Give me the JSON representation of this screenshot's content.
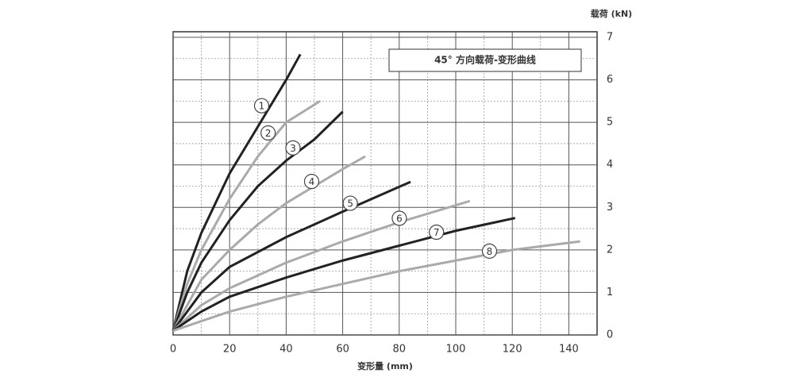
{
  "chart_data": {
    "type": "line",
    "title": "45° 方向载荷-变形曲线",
    "x_label": "变形量 (mm)",
    "y_label": "载荷 (kN)",
    "xlim": [
      0,
      150
    ],
    "xticks": [
      0,
      20,
      40,
      60,
      80,
      100,
      120,
      140
    ],
    "ylim": [
      0,
      7
    ],
    "yticks": [
      0,
      1,
      2,
      3,
      4,
      5,
      6,
      7
    ],
    "grid": true,
    "series": [
      {
        "name": "1",
        "color": "#222222",
        "x": [
          0,
          5,
          10,
          20,
          30,
          40,
          45
        ],
        "values": [
          0.1,
          1.5,
          2.4,
          3.8,
          4.9,
          6.0,
          6.6
        ]
      },
      {
        "name": "2",
        "color": "#aaaaaa",
        "x": [
          0,
          5,
          10,
          20,
          30,
          40,
          52
        ],
        "values": [
          0.1,
          1.2,
          2.0,
          3.2,
          4.2,
          5.0,
          5.5
        ]
      },
      {
        "name": "3",
        "color": "#222222",
        "x": [
          0,
          5,
          10,
          20,
          30,
          40,
          50,
          60
        ],
        "values": [
          0.1,
          1.0,
          1.7,
          2.7,
          3.5,
          4.1,
          4.6,
          5.25
        ]
      },
      {
        "name": "4",
        "color": "#aaaaaa",
        "x": [
          0,
          10,
          20,
          30,
          40,
          50,
          60,
          68
        ],
        "values": [
          0.1,
          1.3,
          2.0,
          2.6,
          3.1,
          3.5,
          3.9,
          4.2
        ]
      },
      {
        "name": "5",
        "color": "#222222",
        "x": [
          0,
          10,
          20,
          40,
          60,
          84
        ],
        "values": [
          0.1,
          1.0,
          1.6,
          2.3,
          2.9,
          3.6
        ]
      },
      {
        "name": "6",
        "color": "#aaaaaa",
        "x": [
          0,
          10,
          20,
          40,
          60,
          80,
          105
        ],
        "values": [
          0.1,
          0.7,
          1.1,
          1.7,
          2.2,
          2.65,
          3.15
        ]
      },
      {
        "name": "7",
        "color": "#222222",
        "x": [
          0,
          10,
          20,
          40,
          60,
          80,
          100,
          121
        ],
        "values": [
          0.1,
          0.55,
          0.9,
          1.35,
          1.75,
          2.1,
          2.45,
          2.75
        ]
      },
      {
        "name": "8",
        "color": "#aaaaaa",
        "x": [
          0,
          20,
          40,
          60,
          80,
          100,
          120,
          144
        ],
        "values": [
          0.1,
          0.55,
          0.9,
          1.2,
          1.5,
          1.75,
          2.0,
          2.2
        ]
      }
    ]
  }
}
